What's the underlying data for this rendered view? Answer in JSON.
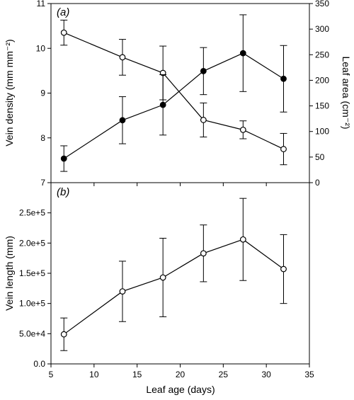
{
  "chart_data": [
    {
      "type": "line",
      "panel_label": "(a)",
      "x": [
        6.5,
        13.3,
        18,
        22.7,
        27.3,
        32
      ],
      "xlim": [
        5,
        35
      ],
      "x_ticks": [
        5,
        10,
        15,
        20,
        25,
        30,
        35
      ],
      "ylabel": "Vein density (mm mm⁻²)",
      "ylim": [
        7,
        11
      ],
      "y_ticks": [
        7,
        8,
        9,
        10,
        11
      ],
      "y2label": "Leaf area (cm⁻²)",
      "y2lim": [
        0,
        350
      ],
      "y2_ticks": [
        0,
        50,
        100,
        150,
        200,
        250,
        300,
        350
      ],
      "series": [
        {
          "axis": "left",
          "marker": "open-circle",
          "values": [
            10.35,
            9.8,
            9.45,
            8.4,
            8.18,
            7.75
          ],
          "err": [
            0.28,
            0.4,
            0.6,
            0.38,
            0.2,
            0.35
          ]
        },
        {
          "axis": "right",
          "marker": "filled-circle",
          "values": [
            47,
            122,
            152,
            218,
            253,
            203
          ],
          "err": [
            25,
            46,
            59,
            46,
            75,
            65
          ]
        }
      ]
    },
    {
      "type": "line",
      "panel_label": "(b)",
      "x": [
        6.5,
        13.3,
        18,
        22.7,
        27.3,
        32
      ],
      "xlim": [
        5,
        35
      ],
      "x_ticks": [
        5,
        10,
        15,
        20,
        25,
        30,
        35
      ],
      "xlabel": "Leaf age (days)",
      "ylabel": "Vein length (mm)",
      "ylim": [
        0,
        300000
      ],
      "y_ticks": [
        0,
        50000,
        100000,
        150000,
        200000,
        250000
      ],
      "y_tick_labels": [
        "0.0",
        "5.0e+4",
        "1.0e+5",
        "1.5e+5",
        "2.0e+5",
        "2.5e+5"
      ],
      "series": [
        {
          "axis": "left",
          "marker": "open-circle",
          "values": [
            49000,
            120000,
            143000,
            183000,
            206000,
            157000
          ],
          "err": [
            27000,
            50000,
            65000,
            47000,
            68000,
            57000
          ]
        }
      ]
    }
  ]
}
